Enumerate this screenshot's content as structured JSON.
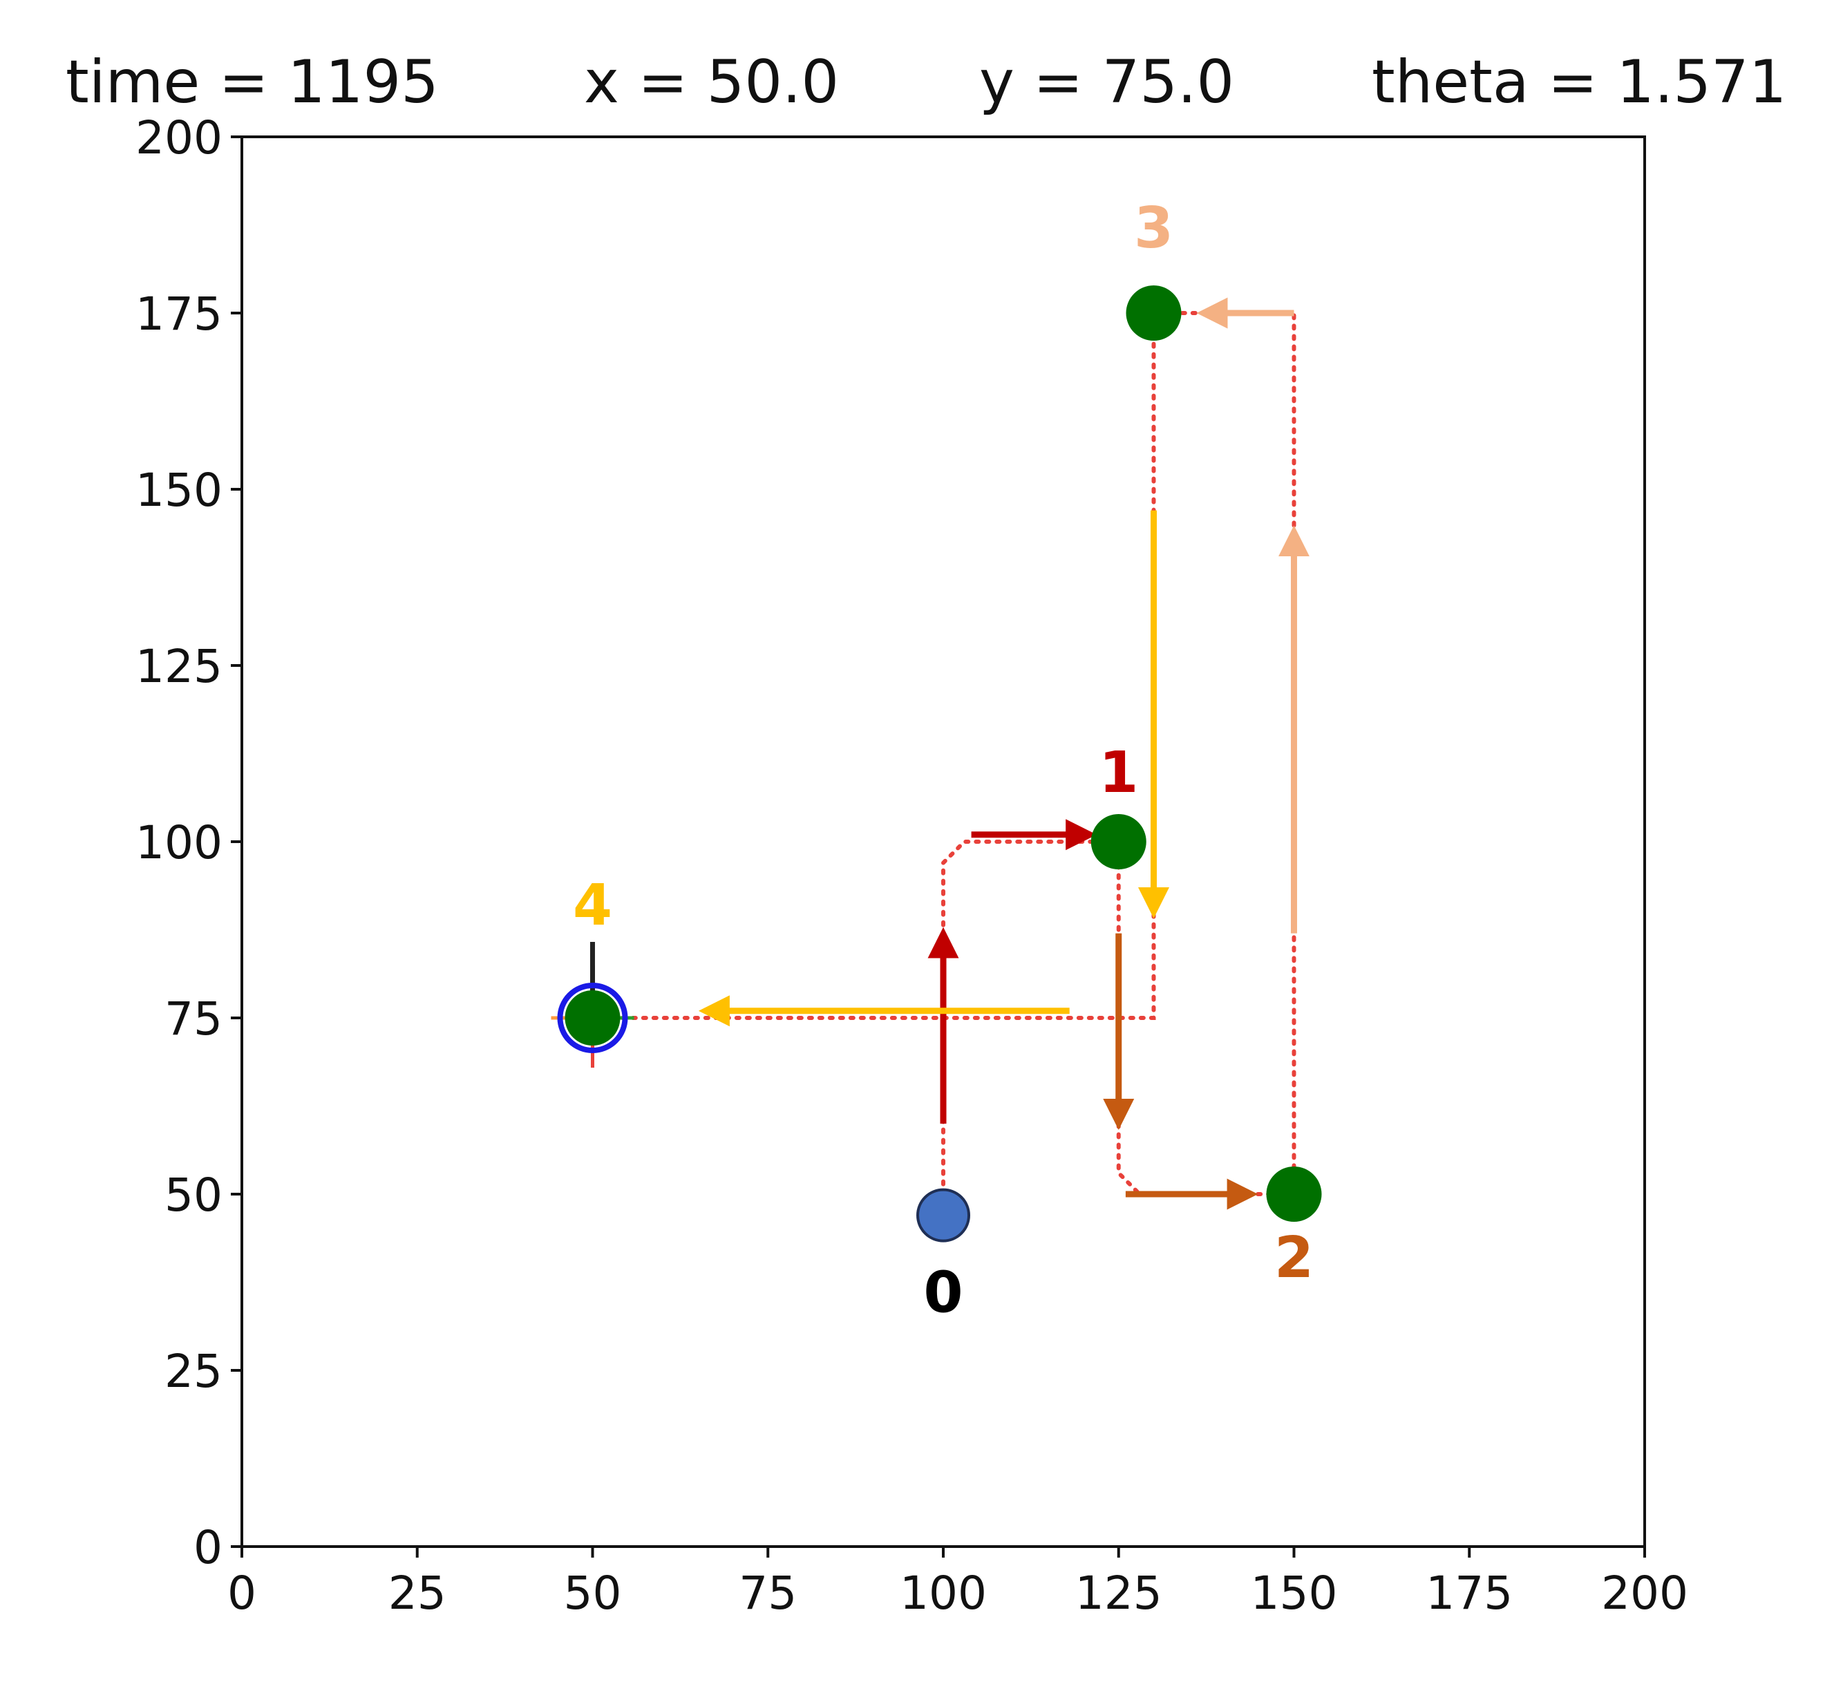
{
  "header": {
    "time": "time = 1195",
    "x": "x = 50.0",
    "y": "y = 75.0",
    "theta": "theta = 1.571"
  },
  "chart_data": {
    "type": "scatter",
    "xlim": [
      0,
      200
    ],
    "ylim": [
      0,
      200
    ],
    "x_ticks": [
      "0",
      "25",
      "50",
      "75",
      "100",
      "125",
      "150",
      "175",
      "200"
    ],
    "y_ticks": [
      "0",
      "25",
      "50",
      "75",
      "100",
      "125",
      "150",
      "175",
      "200"
    ],
    "grid": false,
    "colors": {
      "path": "#e8413a",
      "waypoint": "#007000",
      "start": "#4472c4",
      "seg1": "#c00000",
      "seg2": "#c55a11",
      "seg3": "#f4b183",
      "seg4": "#ffc000",
      "robot_ring": "#1a1ae6",
      "heading": "#222222"
    },
    "start": {
      "x": 100,
      "y": 47,
      "label": "0"
    },
    "waypoints": [
      {
        "x": 125,
        "y": 100,
        "label": "1"
      },
      {
        "x": 150,
        "y": 50,
        "label": "2"
      },
      {
        "x": 130,
        "y": 175,
        "label": "3"
      },
      {
        "x": 50,
        "y": 75,
        "label": "4"
      }
    ],
    "path": [
      [
        100,
        47
      ],
      [
        100,
        97
      ],
      [
        103,
        100
      ],
      [
        125,
        100
      ],
      [
        125,
        53
      ],
      [
        128,
        50
      ],
      [
        150,
        50
      ],
      [
        150,
        175
      ],
      [
        130,
        175
      ],
      [
        130,
        75
      ],
      [
        50,
        75
      ]
    ],
    "arrows": [
      {
        "from": [
          100,
          60
        ],
        "to": [
          100,
          87
        ],
        "color": "seg1"
      },
      {
        "from": [
          104,
          101
        ],
        "to": [
          121,
          101
        ],
        "color": "seg1"
      },
      {
        "from": [
          125,
          87
        ],
        "to": [
          125,
          60
        ],
        "color": "seg2"
      },
      {
        "from": [
          126,
          50
        ],
        "to": [
          144,
          50
        ],
        "color": "seg2"
      },
      {
        "from": [
          150,
          87
        ],
        "to": [
          150,
          144
        ],
        "color": "seg3"
      },
      {
        "from": [
          150,
          175
        ],
        "to": [
          137,
          175
        ],
        "color": "seg3"
      },
      {
        "from": [
          130,
          147
        ],
        "to": [
          130,
          90
        ],
        "color": "seg4"
      },
      {
        "from": [
          118,
          76
        ],
        "to": [
          66,
          76
        ],
        "color": "seg4"
      }
    ],
    "robot": {
      "x": 50,
      "y": 75,
      "theta": 1.571
    }
  }
}
